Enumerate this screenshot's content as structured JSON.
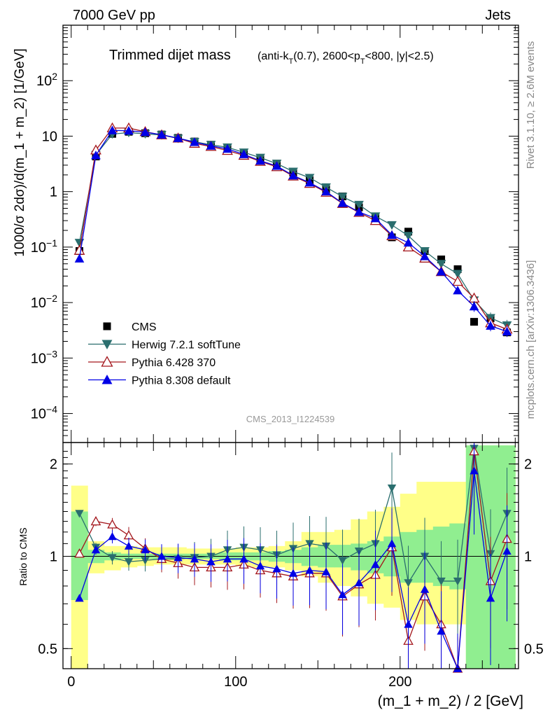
{
  "header": {
    "energy_label": "7000 GeV pp",
    "category_label": "Jets"
  },
  "chart_data": [
    {
      "panel": "main",
      "type": "scatter",
      "title": "Trimmed dijet mass",
      "title_detail": "(anti-k_T(0.7), 2600<p_T<800, |y|<2.5)",
      "title_detail_parts": {
        "a": "(anti-k",
        "a_sub": "T",
        "b": "(0.7), 2600<p",
        "b_sub": "T",
        "c": "<800, |y|<2.5)"
      },
      "ylabel": "1000/σ 2dσ)/d(m_1 + m_2) [1/GeV]",
      "y_scale": "log",
      "ylim": [
        3e-05,
        1000
      ],
      "y_tick_labels": [
        "10^-4",
        "10^-3",
        "10^-2",
        "10^-1",
        "1",
        "10",
        "10^2"
      ],
      "xlim": [
        -5,
        272
      ],
      "x_tick_labels": [
        "0",
        "100",
        "200"
      ],
      "watermark": "CMS_2013_I1224539",
      "legend_position": "lower-left",
      "x": [
        5,
        15,
        25,
        35,
        45,
        55,
        65,
        75,
        85,
        95,
        105,
        115,
        125,
        135,
        145,
        155,
        165,
        175,
        185,
        195,
        205,
        215,
        225,
        235,
        245,
        255,
        265
      ],
      "series": [
        {
          "name": "CMS",
          "color": "#000000",
          "marker": "square",
          "values": [
            0.085,
            4.3,
            11.0,
            12.0,
            11.3,
            10.7,
            9.3,
            8.0,
            7.0,
            6.0,
            4.8,
            3.9,
            3.2,
            2.2,
            1.6,
            1.1,
            0.82,
            0.52,
            0.35,
            0.15,
            0.19,
            0.085,
            0.06,
            0.04,
            0.0045,
            0.0052,
            0.0029
          ]
        },
        {
          "name": "Herwig 7.2.1 softTune",
          "color": "#2a6e6e",
          "marker": "triangle-down",
          "values": [
            0.12,
            4.6,
            10.9,
            11.6,
            11.0,
            10.5,
            9.1,
            7.9,
            7.0,
            6.3,
            5.1,
            4.1,
            3.2,
            2.3,
            1.78,
            1.2,
            0.81,
            0.58,
            0.36,
            0.25,
            0.16,
            0.085,
            0.05,
            0.033,
            0.011,
            0.0053,
            0.0039
          ]
        },
        {
          "name": "Pythia 6.428 370",
          "color": "#a3161c",
          "marker": "triangle-open",
          "values": [
            0.087,
            5.6,
            14.0,
            14.0,
            12.0,
            10.5,
            9.2,
            7.4,
            6.5,
            5.5,
            4.5,
            3.5,
            2.8,
            1.9,
            1.4,
            0.97,
            0.61,
            0.42,
            0.3,
            0.16,
            0.1,
            0.063,
            0.036,
            0.024,
            0.012,
            0.0043,
            0.0033
          ]
        },
        {
          "name": "Pythia 8.308 default",
          "color": "#0000e6",
          "marker": "triangle-up",
          "values": [
            0.062,
            4.5,
            12.7,
            12.5,
            11.8,
            10.6,
            9.2,
            7.8,
            6.7,
            5.9,
            4.7,
            3.6,
            2.9,
            1.95,
            1.45,
            1.0,
            0.62,
            0.43,
            0.33,
            0.165,
            0.12,
            0.068,
            0.036,
            0.0165,
            0.0085,
            0.0038,
            0.003
          ]
        }
      ]
    },
    {
      "panel": "ratio",
      "type": "line",
      "ylabel": "Ratio to CMS",
      "y_scale": "log",
      "ylim": [
        0.43,
        2.35
      ],
      "y_tick_labels": [
        "0.5",
        "1",
        "2"
      ],
      "xlabel": "(m_1 + m_2) / 2 [GeV]",
      "reference_line": 1,
      "band_colors": {
        "stat": "#90ee90",
        "total": "#ffff88"
      },
      "stat_band": [
        [
          0.72,
          1.4
        ],
        [
          0.95,
          1.05
        ],
        [
          0.97,
          1.03
        ],
        [
          0.98,
          1.02
        ],
        [
          0.98,
          1.02
        ],
        [
          0.98,
          1.02
        ],
        [
          0.98,
          1.02
        ],
        [
          0.98,
          1.02
        ],
        [
          0.98,
          1.02
        ],
        [
          0.97,
          1.03
        ],
        [
          0.97,
          1.03
        ],
        [
          0.97,
          1.03
        ],
        [
          0.96,
          1.04
        ],
        [
          0.95,
          1.05
        ],
        [
          0.93,
          1.07
        ],
        [
          0.92,
          1.09
        ],
        [
          0.92,
          1.09
        ],
        [
          0.9,
          1.1
        ],
        [
          0.88,
          1.12
        ],
        [
          0.86,
          1.16
        ],
        [
          0.82,
          1.2
        ],
        [
          0.82,
          1.22
        ],
        [
          0.8,
          1.25
        ],
        [
          0.78,
          1.28
        ],
        [
          0.4,
          2.3
        ],
        [
          0.4,
          2.3
        ],
        [
          0.4,
          2.3
        ]
      ],
      "total_band": [
        [
          0.4,
          1.7
        ],
        [
          0.88,
          1.12
        ],
        [
          0.9,
          1.08
        ],
        [
          0.92,
          1.08
        ],
        [
          0.93,
          1.07
        ],
        [
          0.94,
          1.07
        ],
        [
          0.94,
          1.07
        ],
        [
          0.94,
          1.06
        ],
        [
          0.94,
          1.06
        ],
        [
          0.94,
          1.06
        ],
        [
          0.93,
          1.07
        ],
        [
          0.92,
          1.07
        ],
        [
          0.92,
          1.08
        ],
        [
          0.9,
          1.12
        ],
        [
          0.86,
          1.2
        ],
        [
          0.82,
          1.2
        ],
        [
          0.8,
          1.22
        ],
        [
          0.74,
          1.32
        ],
        [
          0.7,
          1.4
        ],
        [
          0.68,
          1.45
        ],
        [
          0.62,
          1.6
        ],
        [
          0.6,
          1.75
        ],
        [
          0.6,
          1.75
        ],
        [
          0.6,
          1.75
        ],
        [
          0.4,
          2.3
        ],
        [
          0.4,
          2.3
        ],
        [
          0.4,
          2.3
        ]
      ],
      "series": [
        {
          "name": "Herwig 7.2.1 softTune",
          "color": "#2a6e6e",
          "marker": "triangle-down",
          "values": [
            1.38,
            1.07,
            0.99,
            0.96,
            0.97,
            0.98,
            0.98,
            0.99,
            1.0,
            1.05,
            1.07,
            1.05,
            1.01,
            1.06,
            1.1,
            1.08,
            0.97,
            1.04,
            1.1,
            1.67,
            0.82,
            1.0,
            0.83,
            0.83,
            2.25,
            1.02,
            1.38
          ]
        },
        {
          "name": "Pythia 6.428 370",
          "color": "#a3161c",
          "marker": "triangle-open",
          "values": [
            1.02,
            1.3,
            1.27,
            1.17,
            1.06,
            0.98,
            0.95,
            0.92,
            0.92,
            0.92,
            0.94,
            0.9,
            0.88,
            0.86,
            0.88,
            0.88,
            0.74,
            0.81,
            0.87,
            1.07,
            0.53,
            0.74,
            0.6,
            0.4,
            2.2,
            0.83,
            1.14
          ]
        },
        {
          "name": "Pythia 8.308 default",
          "color": "#0000e6",
          "marker": "triangle-up",
          "values": [
            0.73,
            1.05,
            1.16,
            1.08,
            1.05,
            1.0,
            0.99,
            0.98,
            0.96,
            0.98,
            0.98,
            0.93,
            0.91,
            0.88,
            0.9,
            0.89,
            0.75,
            0.82,
            0.94,
            1.1,
            0.6,
            0.78,
            0.57,
            0.41,
            1.9,
            0.73,
            1.04
          ]
        }
      ]
    }
  ],
  "side_labels": {
    "rivet": "Rivet 3.1.10, ≥ 2.6M events",
    "mcplots": "mcplots.cern.ch [arXiv:1306.3436]"
  }
}
